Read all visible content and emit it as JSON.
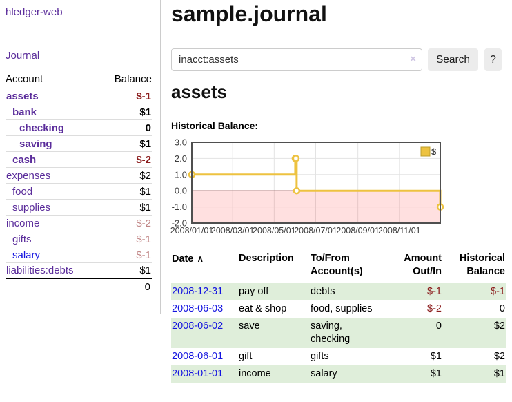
{
  "app": {
    "brand": "hledger-web",
    "nav_journal": "Journal"
  },
  "sidebar": {
    "header": {
      "account": "Account",
      "balance": "Balance"
    },
    "accounts": [
      {
        "name": "assets",
        "balance": "$-1"
      },
      {
        "name": "bank",
        "balance": "$1"
      },
      {
        "name": "checking",
        "balance": "0"
      },
      {
        "name": "saving",
        "balance": "$1"
      },
      {
        "name": "cash",
        "balance": "$-2"
      },
      {
        "name": "expenses",
        "balance": "$2"
      },
      {
        "name": "food",
        "balance": "$1"
      },
      {
        "name": "supplies",
        "balance": "$1"
      },
      {
        "name": "income",
        "balance": "$-2"
      },
      {
        "name": "gifts",
        "balance": "$-1"
      },
      {
        "name": "salary",
        "balance": "$-1"
      },
      {
        "name": "liabilities:debts",
        "balance": "$1"
      }
    ],
    "total": "0"
  },
  "main": {
    "title": "sample.journal",
    "search": {
      "value": "inacct:assets",
      "clear_icon": "×",
      "button": "Search",
      "help": "?"
    },
    "section_heading": "assets",
    "chart_label": "Historical Balance:"
  },
  "chart_data": {
    "type": "line",
    "title": "Historical Balance",
    "step": true,
    "series": [
      {
        "name": "$",
        "points": [
          [
            "2008-01-01",
            1
          ],
          [
            "2008-06-01",
            2
          ],
          [
            "2008-06-02",
            2
          ],
          [
            "2008-06-03",
            0
          ],
          [
            "2008-12-31",
            -1
          ]
        ]
      }
    ],
    "x_range": [
      "2008-01-01",
      "2008-12-31"
    ],
    "ylim": [
      -2,
      3
    ],
    "y_ticks": [
      "3.0",
      "2.0",
      "1.0",
      "0.0",
      "-1.0",
      "-2.0"
    ],
    "x_ticks": [
      {
        "date": "2008-01-01",
        "label": "2008/01/01"
      },
      {
        "date": "2008-03-01",
        "label": "2008/03/01"
      },
      {
        "date": "2008-05-01",
        "label": "2008/05/01"
      },
      {
        "date": "2008-07-01",
        "label": "2008/07/01"
      },
      {
        "date": "2008-09-01",
        "label": "2008/09/01"
      },
      {
        "date": "2008-11-01",
        "label": "2008/11/01"
      }
    ],
    "legend": {
      "label": "$",
      "position": "top-right"
    },
    "grid": true,
    "negative_region_shaded": true,
    "colors": {
      "line": "#edc240",
      "legend_border": "#bd9d2b",
      "zero_line": "#7b0c0c",
      "negative_fill": "rgba(255,0,0,0.12)",
      "grid": "#e3e3e3",
      "border": "#4f4f4f",
      "tick_text": "#3d3d3d"
    }
  },
  "register": {
    "headers": {
      "date": "Date",
      "sort_icon": "∧",
      "description": "Description",
      "tofrom_line1": "To/From",
      "tofrom_line2": "Account(s)",
      "amount_line1": "Amount",
      "amount_line2": "Out/In",
      "hist_line1": "Historical",
      "hist_line2": "Balance"
    },
    "rows": [
      {
        "date": "2008-12-31",
        "description": "pay off",
        "accounts": "debts",
        "amount": "$-1",
        "balance": "$-1"
      },
      {
        "date": "2008-06-03",
        "description": "eat & shop",
        "accounts": "food, supplies",
        "amount": "$-2",
        "balance": "0"
      },
      {
        "date": "2008-06-02",
        "description": "save",
        "accounts": "saving, checking",
        "amount": "0",
        "balance": "$2"
      },
      {
        "date": "2008-06-01",
        "description": "gift",
        "accounts": "gifts",
        "amount": "$1",
        "balance": "$2"
      },
      {
        "date": "2008-01-01",
        "description": "income",
        "accounts": "salary",
        "amount": "$1",
        "balance": "$1"
      }
    ]
  },
  "colors": {
    "link_purple": "#5b2d9b",
    "link_blue": "#1414e0",
    "negative_strong": "#8b1c1c",
    "negative_muted": "#c08484",
    "row_stripe_green": "#dfeeda",
    "button_gray": "#ececec",
    "accent_gold": "#edc240"
  }
}
